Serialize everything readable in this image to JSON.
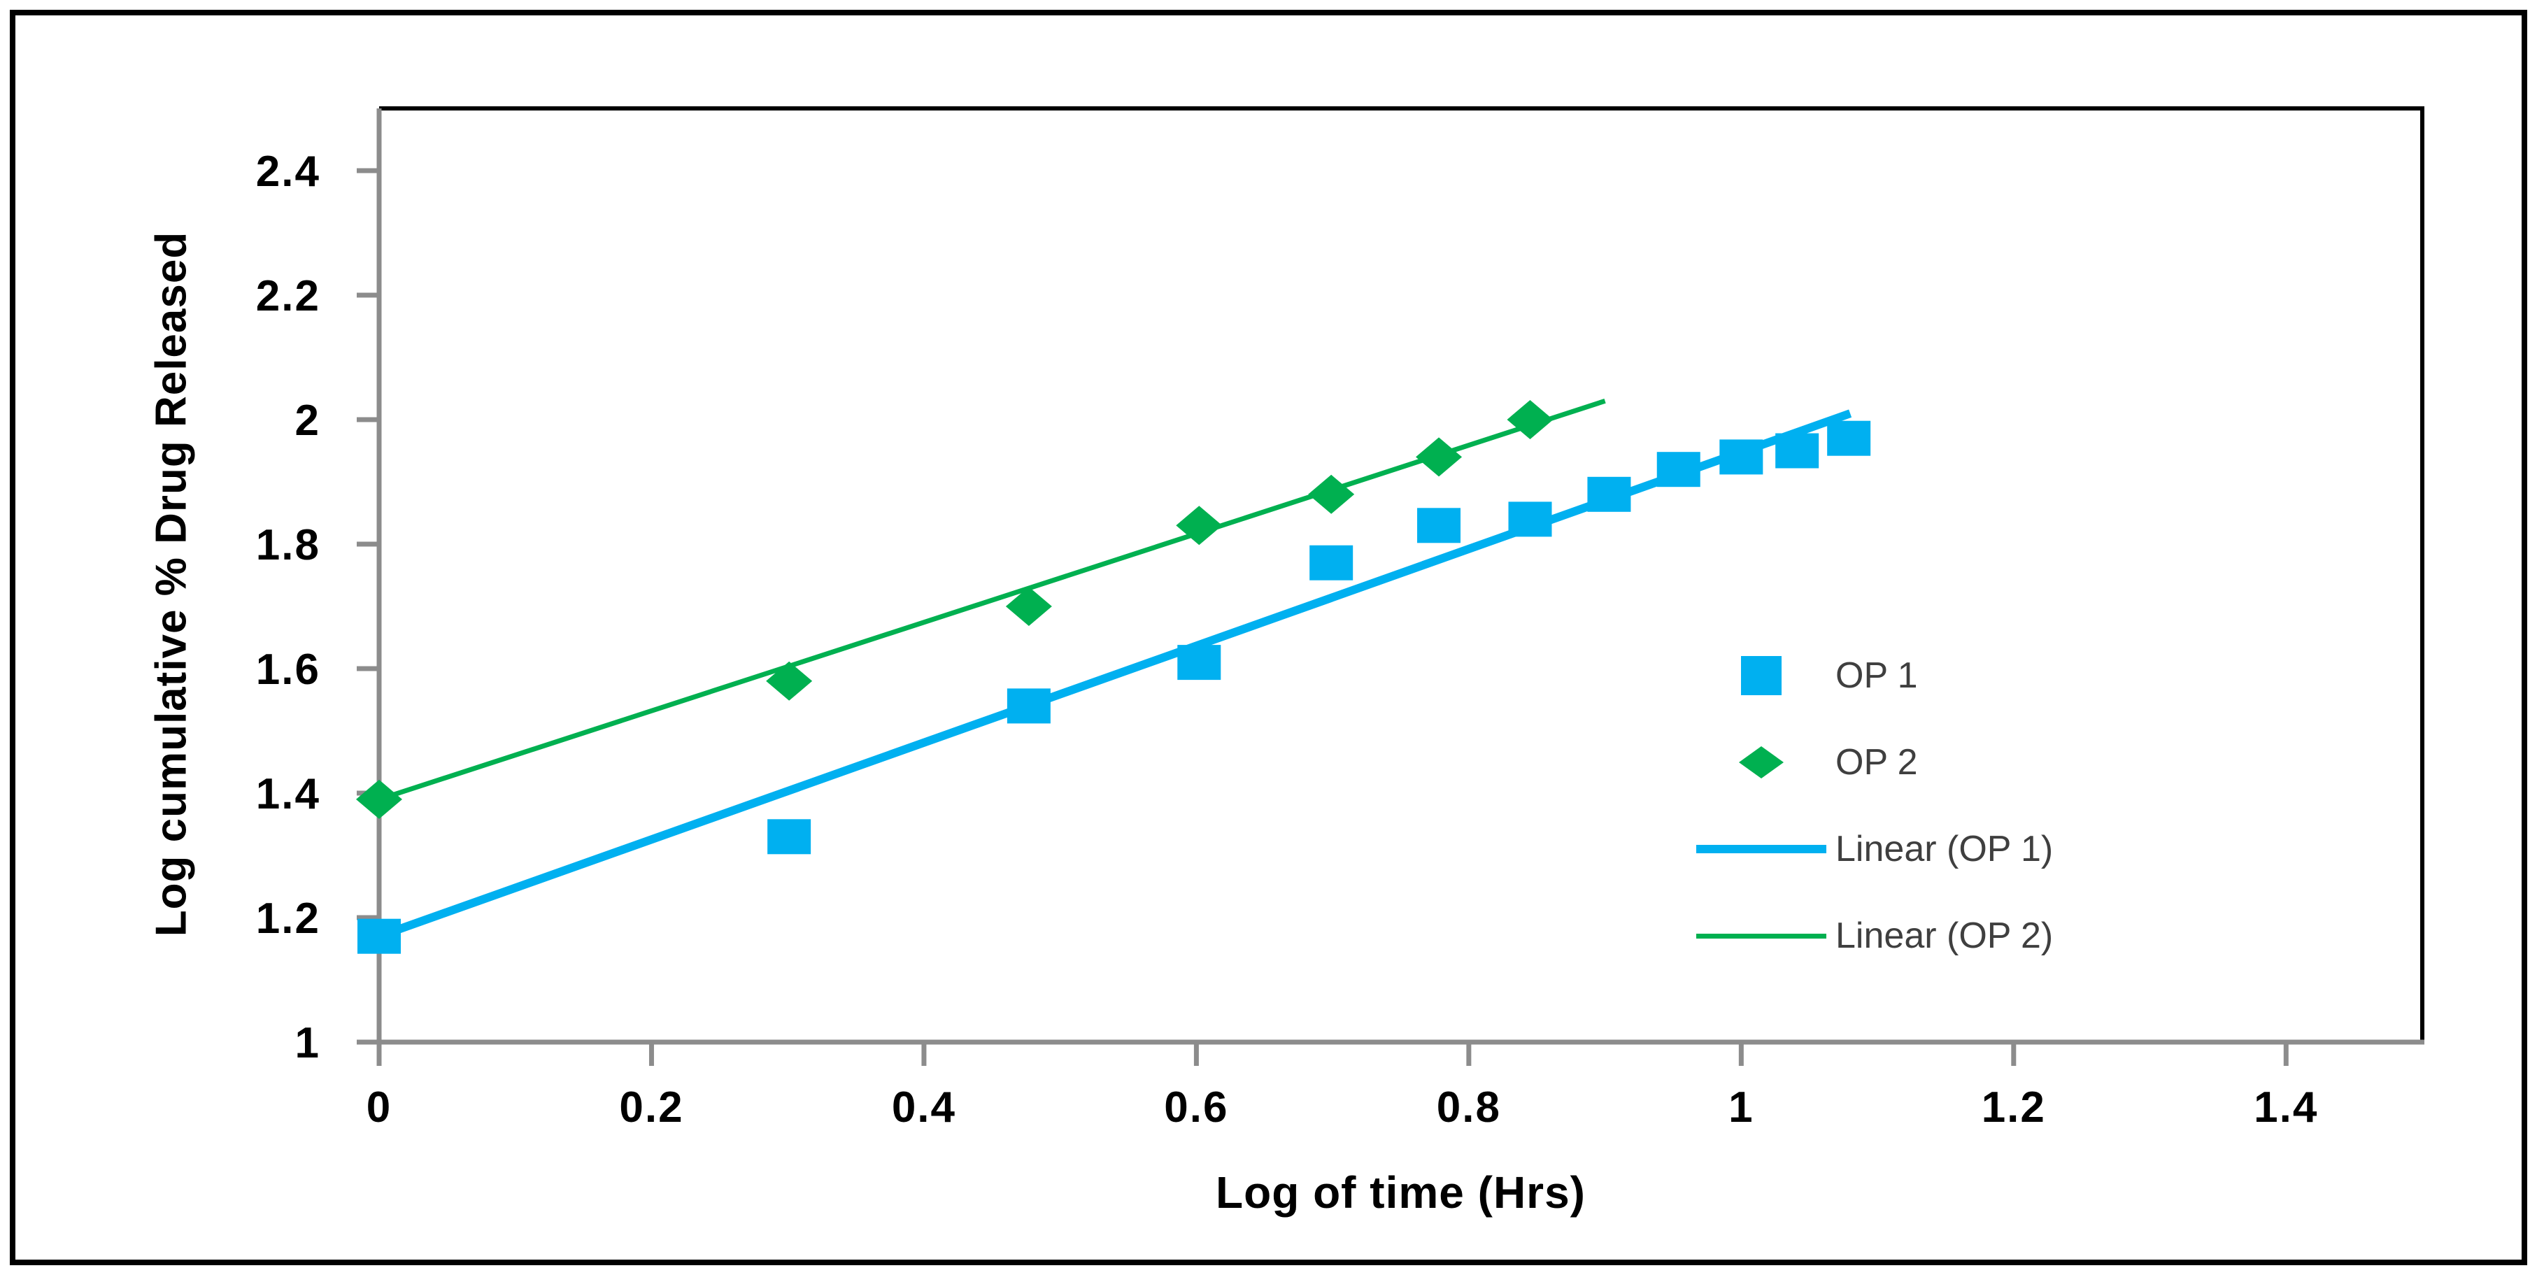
{
  "chart_data": {
    "type": "scatter",
    "title": "",
    "xlabel": "Log of time (Hrs)",
    "ylabel": "Log cumulative % Drug Released",
    "xlim": [
      0,
      1.5
    ],
    "ylim": [
      1,
      2.5
    ],
    "grid": false,
    "legend_position": "inside-middle-right",
    "x_ticks": [
      0,
      0.2,
      0.4,
      0.6,
      0.8,
      1,
      1.2,
      1.4
    ],
    "x_tick_labels": [
      "0",
      "0.2",
      "0.4",
      "0.6",
      "0.8",
      "1",
      "1.2",
      "1.4"
    ],
    "y_ticks": [
      1,
      1.2,
      1.4,
      1.6,
      1.8,
      2,
      2.2,
      2.4
    ],
    "y_tick_labels": [
      "1",
      "1.2",
      "1.4",
      "1.6",
      "1.8",
      "2",
      "2.2",
      "2.4"
    ],
    "series": [
      {
        "id": "op1",
        "name": "OP 1",
        "marker": "square",
        "color": "#00B0F0",
        "x": [
          0,
          0.301,
          0.477,
          0.602,
          0.699,
          0.778,
          0.845,
          0.903,
          0.954,
          1.0,
          1.041,
          1.079
        ],
        "y": [
          1.17,
          1.33,
          1.54,
          1.61,
          1.77,
          1.83,
          1.84,
          1.88,
          1.92,
          1.94,
          1.95,
          1.97
        ]
      },
      {
        "id": "op2",
        "name": "OP 2",
        "marker": "diamond",
        "color": "#00B050",
        "x": [
          0,
          0.301,
          0.477,
          0.602,
          0.699,
          0.778,
          0.845
        ],
        "y": [
          1.39,
          1.58,
          1.7,
          1.83,
          1.88,
          1.94,
          2.0
        ]
      }
    ],
    "trendlines": [
      {
        "id": "linear-op1",
        "name": "Linear (OP 1)",
        "color": "#00B0F0",
        "width": 12,
        "from": [
          0,
          1.17
        ],
        "to": [
          1.08,
          2.01
        ]
      },
      {
        "id": "linear-op2",
        "name": "Linear (OP 2)",
        "color": "#00B050",
        "width": 7,
        "from": [
          0,
          1.39
        ],
        "to": [
          0.9,
          2.03
        ]
      }
    ],
    "legend": {
      "items": [
        {
          "label": "OP 1"
        },
        {
          "label": "OP 2"
        },
        {
          "label": "Linear (OP 1)"
        },
        {
          "label": "Linear (OP 2)"
        }
      ]
    },
    "style": {
      "axis_color": "#8C8C8C",
      "plot_border_color": "#000000",
      "tick_label_color": "#000000",
      "legend_text_color": "#3F3F3F",
      "figure_border_color": "#000000",
      "background": "#FFFFFF"
    }
  }
}
